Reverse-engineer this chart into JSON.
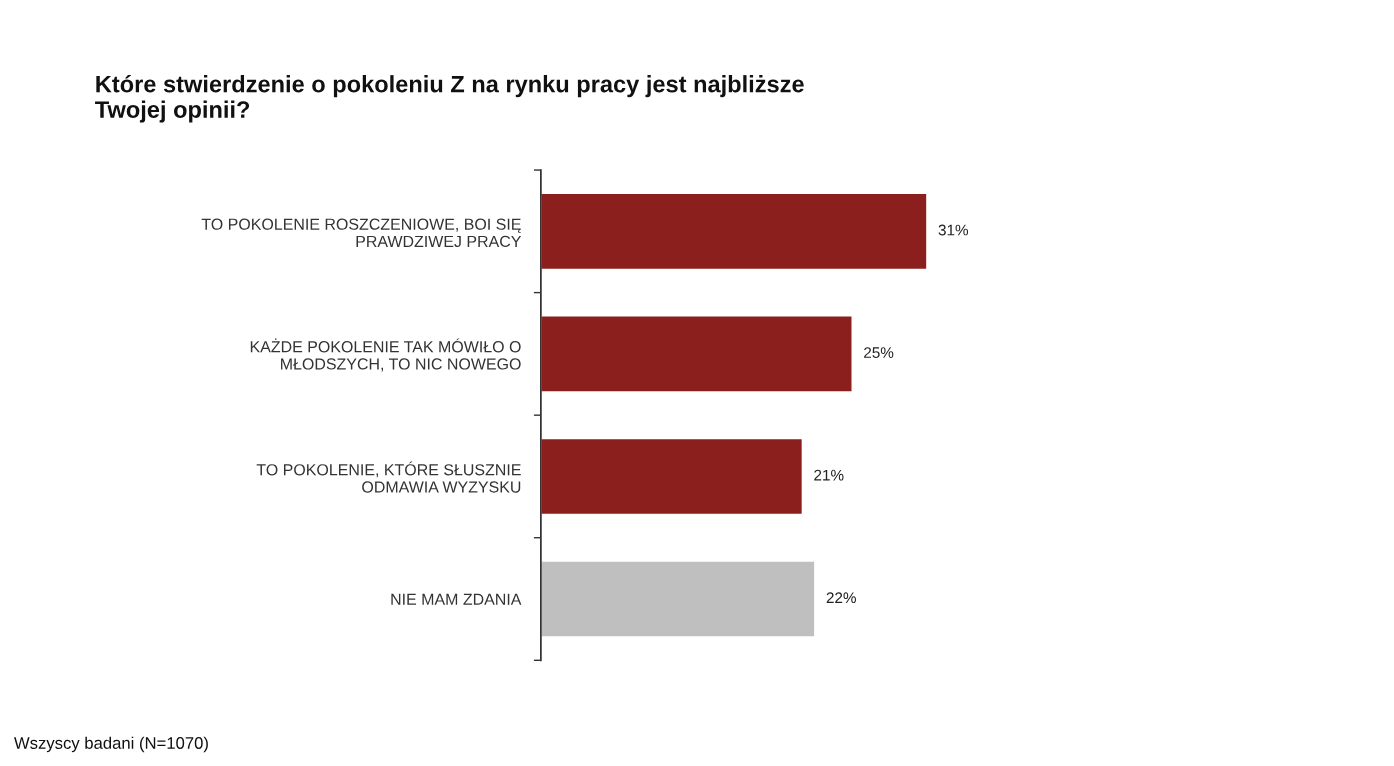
{
  "chart_data": {
    "type": "bar",
    "orientation": "horizontal",
    "title": "Które stwierdzenie o pokoleniu Z na rynku pracy jest najbliższe\nTwojej opinii?",
    "categories": [
      "TO POKOLENIE ROSZCZENIOWE, BOI SIĘ\nPRAWDZIWEJ PRACY",
      "KAŻDE POKOLENIE TAK MÓWIŁO O\nMŁODSZYCH, TO NIC NOWEGO",
      "TO POKOLENIE, KTÓRE SŁUSZNIE\nODMAWIA WYZYSKU",
      "NIE MAM ZDANIA"
    ],
    "values": [
      31,
      25,
      21,
      22
    ],
    "colors": [
      "#8b1f1d",
      "#8b1f1d",
      "#8b1f1d",
      "#bfbfbf"
    ],
    "value_labels": [
      "31%",
      "25%",
      "21%",
      "22%"
    ],
    "annotations": [
      "Wszyscy badani (N=1070)"
    ],
    "grid": false,
    "legend": false
  }
}
